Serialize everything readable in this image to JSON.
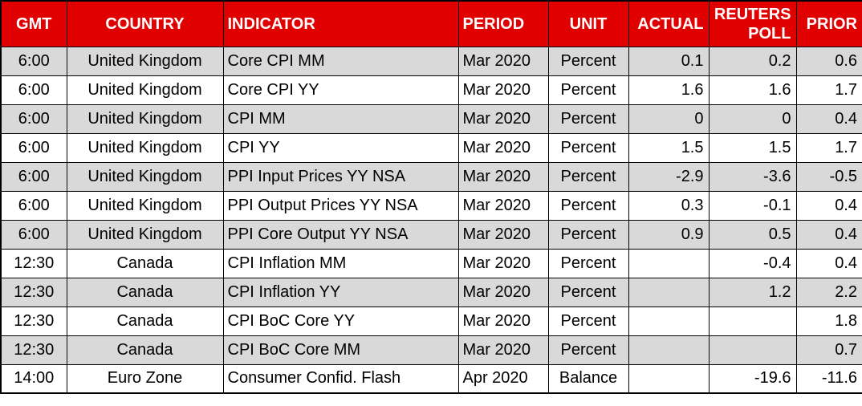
{
  "table": {
    "columns": [
      {
        "label": "GMT"
      },
      {
        "label": "COUNTRY"
      },
      {
        "label": "INDICATOR"
      },
      {
        "label": "PERIOD"
      },
      {
        "label": "UNIT"
      },
      {
        "label": "ACTUAL"
      },
      {
        "label": "REUTERS POLL"
      },
      {
        "label": "PRIOR"
      }
    ],
    "rows": [
      {
        "gmt": "6:00",
        "country": "United Kingdom",
        "indicator": "Core CPI MM",
        "period": "Mar 2020",
        "unit": "Percent",
        "actual": "0.1",
        "reuters_poll": "0.2",
        "prior": "0.6"
      },
      {
        "gmt": "6:00",
        "country": "United Kingdom",
        "indicator": "Core CPI YY",
        "period": "Mar 2020",
        "unit": "Percent",
        "actual": "1.6",
        "reuters_poll": "1.6",
        "prior": "1.7"
      },
      {
        "gmt": "6:00",
        "country": "United Kingdom",
        "indicator": "CPI MM",
        "period": "Mar 2020",
        "unit": "Percent",
        "actual": "0",
        "reuters_poll": "0",
        "prior": "0.4"
      },
      {
        "gmt": "6:00",
        "country": "United Kingdom",
        "indicator": "CPI YY",
        "period": "Mar 2020",
        "unit": "Percent",
        "actual": "1.5",
        "reuters_poll": "1.5",
        "prior": "1.7"
      },
      {
        "gmt": "6:00",
        "country": "United Kingdom",
        "indicator": "PPI Input Prices YY NSA",
        "period": "Mar 2020",
        "unit": "Percent",
        "actual": "-2.9",
        "reuters_poll": "-3.6",
        "prior": "-0.5"
      },
      {
        "gmt": "6:00",
        "country": "United Kingdom",
        "indicator": "PPI Output Prices YY NSA",
        "period": "Mar 2020",
        "unit": "Percent",
        "actual": "0.3",
        "reuters_poll": "-0.1",
        "prior": "0.4"
      },
      {
        "gmt": "6:00",
        "country": "United Kingdom",
        "indicator": "PPI Core Output YY NSA",
        "period": "Mar 2020",
        "unit": "Percent",
        "actual": "0.9",
        "reuters_poll": "0.5",
        "prior": "0.4"
      },
      {
        "gmt": "12:30",
        "country": "Canada",
        "indicator": "CPI Inflation MM",
        "period": "Mar 2020",
        "unit": "Percent",
        "actual": "",
        "reuters_poll": "-0.4",
        "prior": "0.4"
      },
      {
        "gmt": "12:30",
        "country": "Canada",
        "indicator": "CPI Inflation YY",
        "period": "Mar 2020",
        "unit": "Percent",
        "actual": "",
        "reuters_poll": "1.2",
        "prior": "2.2"
      },
      {
        "gmt": "12:30",
        "country": "Canada",
        "indicator": "CPI BoC Core YY",
        "period": "Mar 2020",
        "unit": "Percent",
        "actual": "",
        "reuters_poll": "",
        "prior": "1.8"
      },
      {
        "gmt": "12:30",
        "country": "Canada",
        "indicator": "CPI BoC Core MM",
        "period": "Mar 2020",
        "unit": "Percent",
        "actual": "",
        "reuters_poll": "",
        "prior": "0.7"
      },
      {
        "gmt": "14:00",
        "country": "Euro Zone",
        "indicator": "Consumer Confid. Flash",
        "period": "Apr 2020",
        "unit": "Balance",
        "actual": "",
        "reuters_poll": "-19.6",
        "prior": "-11.6"
      }
    ]
  },
  "colors": {
    "header_bg": "#E00000",
    "header_text": "#FFFFFF",
    "stripe_row_bg": "#D9D9D9",
    "plain_row_bg": "#FFFFFF",
    "cell_text": "#000000",
    "border": "#000000"
  }
}
